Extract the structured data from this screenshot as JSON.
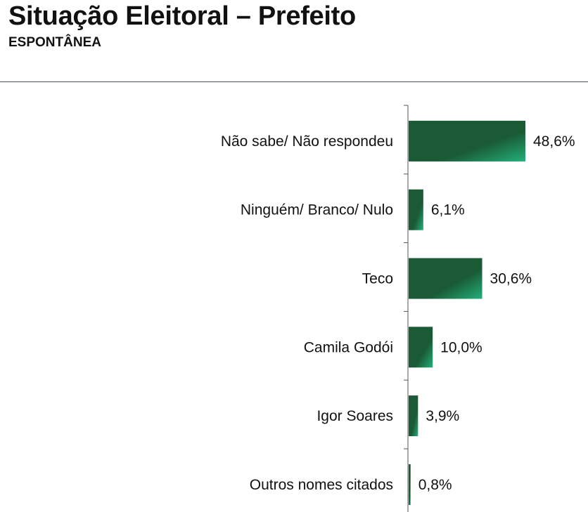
{
  "header": {
    "title": "Situação Eleitoral – Prefeito",
    "subtitle": "ESPONTÂNEA"
  },
  "chart_data": {
    "type": "bar",
    "orientation": "horizontal",
    "categories": [
      "Não sabe/ Não respondeu",
      "Ninguém/ Branco/ Nulo",
      "Teco",
      "Camila Godói",
      "Igor Soares",
      "Outros nomes citados"
    ],
    "values": [
      48.6,
      6.1,
      30.6,
      10.0,
      3.9,
      0.8
    ],
    "value_labels": [
      "48,6%",
      "6,1%",
      "30,6%",
      "10,0%",
      "3,9%",
      "0,8%"
    ],
    "unit": "%",
    "title": "Situação Eleitoral – Prefeito",
    "subtitle": "ESPONTÂNEA",
    "xlabel": "",
    "ylabel": "",
    "xlim": [
      0,
      48.6
    ],
    "grid": false,
    "legend": "none",
    "colors": {
      "bar_dark": "#1a5a35",
      "bar_light": "#23b07a",
      "axis": "#555555"
    }
  }
}
